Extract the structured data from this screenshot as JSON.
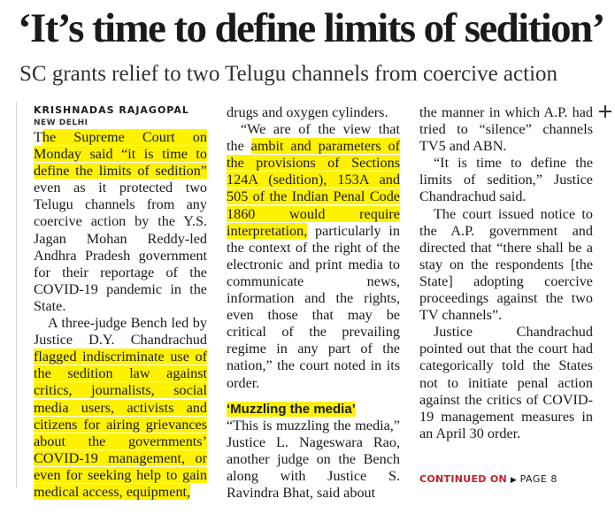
{
  "headline": "‘It’s time to define limits of sedition’",
  "subhead": "SC grants relief to two Telugu channels from coercive action",
  "byline": "KRISHNADAS RAJAGOPAL",
  "dateline": "NEW DELHI",
  "columns": {
    "c1": {
      "p1_a": "T",
      "p1_hl": "he Supreme Court on Monday said “it is time to define the limits of sedition”",
      "p1_b": " even as it protected two Telugu channels from any coercive action by the Y.S. Jagan Mohan Reddy-led Andhra Pradesh government for their reportage of the COVID-19 pandemic in the State.",
      "p2_a": "A three-judge Bench led by Justice D.Y. Chandrachud ",
      "p2_hl": "flagged indiscriminate use of the sedition law against critics, journalists, social media users, activists and citizens for airing grievances about the governments’ COVID-19 management, or even for seeking help to gain medical access, equipment,"
    },
    "c2": {
      "p1": "drugs and oxygen cylinders.",
      "p2_a": "“We are of the view that the ",
      "p2_hl": "ambit and parameters of the provisions of Sections 124A (sedition), 153A and 505 of the Indian Penal Code 1860 would require interpretation,",
      "p2_b": " particularly in the context of the right of the electronic and print media to communicate news, information and the rights, even those that may be critical of the prevailing regime in any part of the nation,” the court noted in its order.",
      "subhead": "‘Muzzling the media’",
      "p3": "“This is muzzling the media,” Justice L. Nageswara Rao, another judge on the Bench along with Justice S. Ravindra Bhat, said about"
    },
    "c3": {
      "p1": "the manner in which A.P. had tried to “silence” channels TV5 and ABN.",
      "p2": "“It is time to define the limits of sedition,” Justice Chandrachud said.",
      "p3": "The court issued notice to the A.P. government and directed that “there shall be a stay on the respondents [the State] adopting coercive proceedings against the two TV channels”.",
      "p4": "Justice Chandrachud pointed out that the court had categorically told the States not to initiate penal action against the critics of COVID-19 management measures in an April 30 order."
    }
  },
  "continued": {
    "label": "CONTINUED ON",
    "arrow": "▶",
    "page": "PAGE 8"
  },
  "colors": {
    "highlight": "#fff200",
    "continued_red": "#c0202a",
    "text": "#1a1a1a"
  }
}
